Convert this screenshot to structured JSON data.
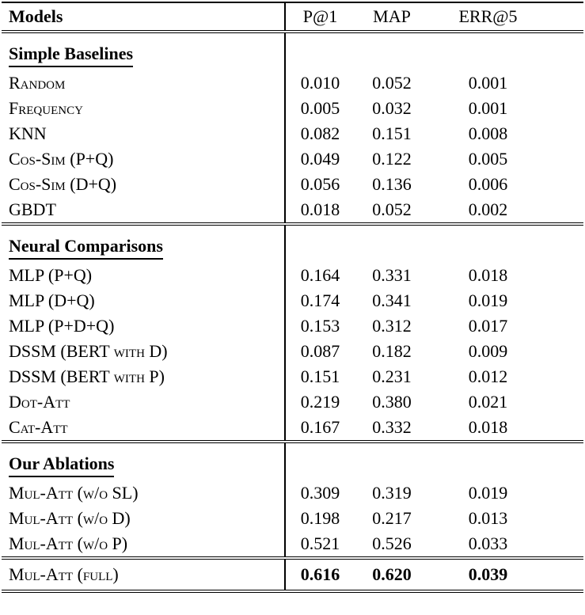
{
  "table": {
    "columns": [
      "Models",
      "P@1",
      "MAP",
      "ERR@5"
    ],
    "sections": [
      {
        "title": "Simple Baselines",
        "rows": [
          {
            "model": "Random",
            "values": [
              "0.010",
              "0.052",
              "0.001"
            ]
          },
          {
            "model": "Frequency",
            "values": [
              "0.005",
              "0.032",
              "0.001"
            ]
          },
          {
            "model": "KNN",
            "values": [
              "0.082",
              "0.151",
              "0.008"
            ]
          },
          {
            "model": "Cos-Sim (P+Q)",
            "values": [
              "0.049",
              "0.122",
              "0.005"
            ]
          },
          {
            "model": "Cos-Sim (D+Q)",
            "values": [
              "0.056",
              "0.136",
              "0.006"
            ]
          },
          {
            "model": "GBDT",
            "values": [
              "0.018",
              "0.052",
              "0.002"
            ]
          }
        ]
      },
      {
        "title": "Neural Comparisons",
        "rows": [
          {
            "model": "MLP (P+Q)",
            "values": [
              "0.164",
              "0.331",
              "0.018"
            ]
          },
          {
            "model": "MLP (D+Q)",
            "values": [
              "0.174",
              "0.341",
              "0.019"
            ]
          },
          {
            "model": "MLP (P+D+Q)",
            "values": [
              "0.153",
              "0.312",
              "0.017"
            ]
          },
          {
            "model": "DSSM (BERT with D)",
            "values": [
              "0.087",
              "0.182",
              "0.009"
            ]
          },
          {
            "model": "DSSM (BERT with P)",
            "values": [
              "0.151",
              "0.231",
              "0.012"
            ]
          },
          {
            "model": "Dot-Att",
            "values": [
              "0.219",
              "0.380",
              "0.021"
            ]
          },
          {
            "model": "Cat-Att",
            "values": [
              "0.167",
              "0.332",
              "0.018"
            ]
          }
        ]
      },
      {
        "title": "Our Ablations",
        "rows": [
          {
            "model": "Mul-Att (w/o SL)",
            "values": [
              "0.309",
              "0.319",
              "0.019"
            ]
          },
          {
            "model": "Mul-Att (w/o D)",
            "values": [
              "0.198",
              "0.217",
              "0.013"
            ]
          },
          {
            "model": "Mul-Att (w/o P)",
            "values": [
              "0.521",
              "0.526",
              "0.033"
            ]
          }
        ]
      }
    ],
    "final_row": {
      "model": "Mul-Att (full)",
      "values": [
        "0.616",
        "0.620",
        "0.039"
      ]
    }
  }
}
